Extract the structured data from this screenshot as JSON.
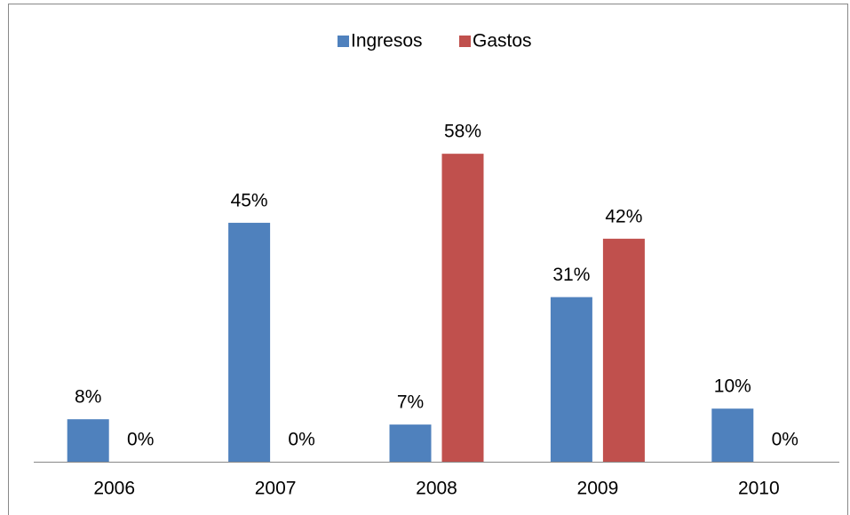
{
  "chart_data": {
    "type": "bar",
    "categories": [
      "2006",
      "2007",
      "2008",
      "2009",
      "2010"
    ],
    "series": [
      {
        "name": "Ingresos",
        "color": "#4f81bd",
        "values": [
          8,
          45,
          7,
          31,
          10
        ],
        "value_labels": [
          "8%",
          "45%",
          "7%",
          "31%",
          "10%"
        ]
      },
      {
        "name": "Gastos",
        "color": "#c0504d",
        "values": [
          0,
          0,
          58,
          42,
          0
        ],
        "value_labels": [
          "0%",
          "0%",
          "58%",
          "42%",
          "0%"
        ]
      }
    ],
    "legend": "top"
  }
}
